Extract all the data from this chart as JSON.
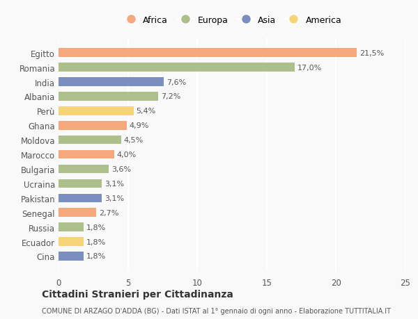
{
  "countries": [
    "Egitto",
    "Romania",
    "India",
    "Albania",
    "Perù",
    "Ghana",
    "Moldova",
    "Marocco",
    "Bulgaria",
    "Ucraina",
    "Pakistan",
    "Senegal",
    "Russia",
    "Ecuador",
    "Cina"
  ],
  "values": [
    21.5,
    17.0,
    7.6,
    7.2,
    5.4,
    4.9,
    4.5,
    4.0,
    3.6,
    3.1,
    3.1,
    2.7,
    1.8,
    1.8,
    1.8
  ],
  "labels": [
    "21,5%",
    "17,0%",
    "7,6%",
    "7,2%",
    "5,4%",
    "4,9%",
    "4,5%",
    "4,0%",
    "3,6%",
    "3,1%",
    "3,1%",
    "2,7%",
    "1,8%",
    "1,8%",
    "1,8%"
  ],
  "continents": [
    "Africa",
    "Europa",
    "Asia",
    "Europa",
    "America",
    "Africa",
    "Europa",
    "Africa",
    "Europa",
    "Europa",
    "Asia",
    "Africa",
    "Europa",
    "America",
    "Asia"
  ],
  "colors": {
    "Africa": "#F4A87C",
    "Europa": "#ADBF8A",
    "Asia": "#7A8EC0",
    "America": "#F5D47A"
  },
  "legend_order": [
    "Africa",
    "Europa",
    "Asia",
    "America"
  ],
  "title": "Cittadini Stranieri per Cittadinanza",
  "subtitle": "COMUNE DI ARZAGO D'ADDA (BG) - Dati ISTAT al 1° gennaio di ogni anno - Elaborazione TUTTITALIA.IT",
  "xlim": [
    0,
    25
  ],
  "xticks": [
    0,
    5,
    10,
    15,
    20,
    25
  ],
  "background_color": "#f9f9f9",
  "grid_color": "#ffffff",
  "bar_height": 0.6
}
